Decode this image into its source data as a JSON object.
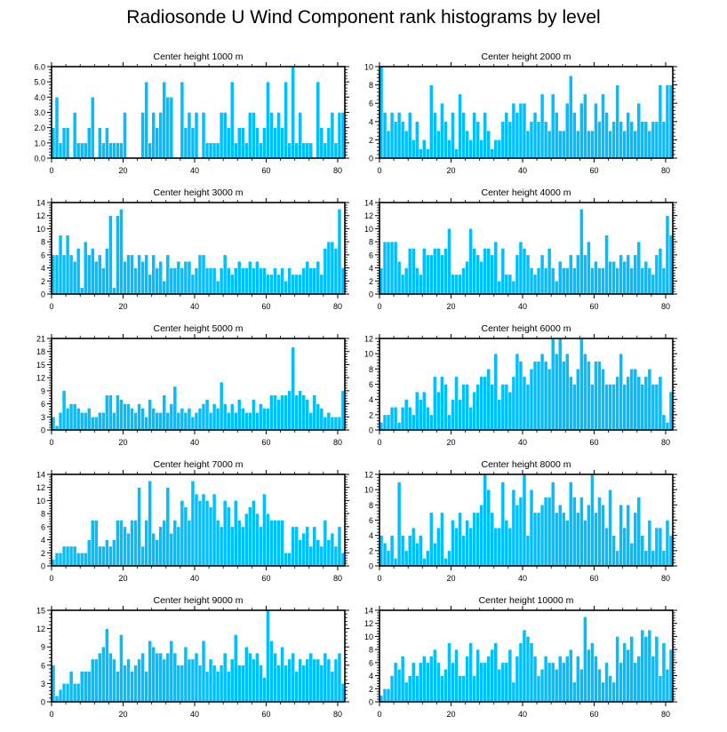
{
  "title": "Radiosonde U Wind Component rank histograms by level",
  "colors": {
    "bar": "#00BFFF",
    "bar_edge": "#ffffff",
    "axis": "#000000"
  },
  "chart_data": [
    {
      "type": "bar",
      "title": "Center height 1000 m",
      "xlim": [
        0,
        82
      ],
      "ylim": [
        0,
        6
      ],
      "xticks": [
        0,
        20,
        40,
        60,
        80
      ],
      "yticks": [
        "0.0",
        "1.0",
        "2.0",
        "3.0",
        "4.0",
        "5.0",
        "6.0"
      ],
      "ytick_values": [
        0,
        1,
        2,
        3,
        4,
        5,
        6
      ],
      "values": [
        2,
        4,
        1,
        2,
        2,
        0,
        3,
        1,
        1,
        1,
        2,
        4,
        0,
        2,
        1,
        2,
        1,
        1,
        1,
        1,
        3,
        0,
        0,
        0,
        0,
        3,
        5,
        1,
        3,
        2,
        3,
        5,
        4,
        4,
        0,
        0,
        5,
        2,
        3,
        2,
        3,
        0,
        3,
        1,
        1,
        1,
        1,
        3,
        3,
        2,
        5,
        1,
        2,
        2,
        1,
        3,
        3,
        2,
        1,
        2,
        5,
        3,
        2,
        3,
        2,
        5,
        1,
        6,
        1,
        3,
        1,
        1,
        1,
        0,
        5,
        2,
        1,
        2,
        3,
        1,
        3,
        3
      ]
    },
    {
      "type": "bar",
      "title": "Center height 2000 m",
      "xlim": [
        0,
        82
      ],
      "ylim": [
        0,
        10
      ],
      "xticks": [
        0,
        20,
        40,
        60,
        80
      ],
      "yticks": [
        "0",
        "2",
        "4",
        "6",
        "8",
        "10"
      ],
      "ytick_values": [
        0,
        2,
        4,
        6,
        8,
        10
      ],
      "values": [
        10,
        5,
        3,
        5,
        4,
        5,
        4,
        3,
        5,
        2,
        4,
        1,
        2,
        1,
        8,
        5,
        3,
        6,
        4,
        2,
        5,
        1,
        7,
        5,
        3,
        2,
        5,
        4,
        2,
        5,
        3,
        1,
        2,
        2,
        4,
        5,
        4,
        6,
        5,
        6,
        6,
        3,
        4,
        5,
        4,
        7,
        4,
        3,
        7,
        5,
        3,
        3,
        6,
        9,
        5,
        3,
        6,
        7,
        3,
        3,
        6,
        4,
        7,
        5,
        3,
        4,
        8,
        4,
        3,
        5,
        4,
        3,
        6,
        4,
        4,
        3,
        4,
        4,
        8,
        4,
        8,
        8
      ]
    },
    {
      "type": "bar",
      "title": "Center height 3000 m",
      "xlim": [
        0,
        82
      ],
      "ylim": [
        0,
        14
      ],
      "xticks": [
        0,
        20,
        40,
        60,
        80
      ],
      "yticks": [
        "0",
        "2",
        "4",
        "6",
        "8",
        "10",
        "12",
        "14"
      ],
      "ytick_values": [
        0,
        2,
        4,
        6,
        8,
        10,
        12,
        14
      ],
      "values": [
        6,
        6,
        9,
        6,
        9,
        6,
        5,
        7,
        1,
        8,
        6,
        7,
        5,
        6,
        4,
        7,
        12,
        1,
        12,
        13,
        5,
        6,
        6,
        4,
        6,
        5,
        6,
        3,
        6,
        4,
        5,
        2,
        6,
        4,
        4,
        5,
        4,
        5,
        5,
        3,
        4,
        6,
        6,
        4,
        4,
        4,
        2,
        4,
        6,
        4,
        3,
        4,
        5,
        4,
        4,
        5,
        4,
        5,
        4,
        4,
        3,
        3,
        4,
        3,
        4,
        2,
        4,
        3,
        3,
        3,
        4,
        5,
        4,
        4,
        5,
        3,
        7,
        8,
        8,
        7,
        13,
        4
      ]
    },
    {
      "type": "bar",
      "title": "Center height 4000 m",
      "xlim": [
        0,
        82
      ],
      "ylim": [
        0,
        14
      ],
      "xticks": [
        0,
        20,
        40,
        60,
        80
      ],
      "yticks": [
        "0",
        "2",
        "4",
        "6",
        "8",
        "10",
        "12",
        "14"
      ],
      "ytick_values": [
        0,
        2,
        4,
        6,
        8,
        10,
        12,
        14
      ],
      "values": [
        4,
        8,
        8,
        8,
        8,
        5,
        3,
        4,
        7,
        7,
        4,
        3,
        7,
        6,
        6,
        7,
        7,
        6,
        7,
        10,
        3,
        3,
        3,
        4,
        5,
        10,
        7,
        6,
        5,
        7,
        7,
        6,
        8,
        2,
        7,
        3,
        3,
        2,
        6,
        8,
        7,
        6,
        4,
        3,
        4,
        6,
        4,
        7,
        4,
        2,
        5,
        4,
        4,
        6,
        4,
        6,
        13,
        6,
        8,
        4,
        5,
        4,
        4,
        9,
        5,
        5,
        4,
        6,
        5,
        6,
        4,
        6,
        8,
        4,
        5,
        4,
        3,
        6,
        7,
        4,
        12,
        9
      ]
    },
    {
      "type": "bar",
      "title": "Center height 5000 m",
      "xlim": [
        0,
        82
      ],
      "ylim": [
        0,
        21
      ],
      "xticks": [
        0,
        20,
        40,
        60,
        80
      ],
      "yticks": [
        "0",
        "3",
        "6",
        "9",
        "12",
        "15",
        "18",
        "21"
      ],
      "ytick_values": [
        0,
        3,
        6,
        9,
        12,
        15,
        18,
        21
      ],
      "values": [
        3,
        1,
        4,
        9,
        5,
        6,
        6,
        5,
        4,
        4,
        5,
        3,
        3,
        4,
        4,
        8,
        8,
        4,
        8,
        7,
        6,
        6,
        5,
        4,
        6,
        5,
        3,
        7,
        5,
        4,
        4,
        8,
        4,
        6,
        10,
        4,
        5,
        4,
        5,
        3,
        4,
        5,
        6,
        7,
        4,
        6,
        5,
        11,
        6,
        4,
        6,
        4,
        7,
        5,
        4,
        4,
        7,
        4,
        6,
        5,
        5,
        8,
        8,
        7,
        8,
        8,
        9,
        19,
        8,
        9,
        8,
        7,
        4,
        8,
        6,
        5,
        3,
        4,
        3,
        3,
        3,
        9
      ]
    },
    {
      "type": "bar",
      "title": "Center height 6000 m",
      "xlim": [
        0,
        82
      ],
      "ylim": [
        0,
        12
      ],
      "xticks": [
        0,
        20,
        40,
        60,
        80
      ],
      "yticks": [
        "0",
        "2",
        "4",
        "6",
        "8",
        "10",
        "12"
      ],
      "ytick_values": [
        0,
        2,
        4,
        6,
        8,
        10,
        12
      ],
      "values": [
        1,
        2,
        2,
        3,
        3,
        1,
        3,
        4,
        3,
        2,
        5,
        4,
        5,
        3,
        2,
        7,
        5,
        7,
        6,
        2,
        4,
        7,
        4,
        6,
        6,
        3,
        5,
        6,
        7,
        7,
        8,
        6,
        10,
        4,
        6,
        6,
        5,
        7,
        10,
        9,
        7,
        6,
        8,
        9,
        9,
        10,
        9,
        8,
        12,
        10,
        12,
        9,
        10,
        7,
        6,
        8,
        12,
        10,
        9,
        6,
        9,
        9,
        8,
        6,
        6,
        6,
        7,
        10,
        6,
        7,
        8,
        8,
        7,
        6,
        7,
        8,
        6,
        6,
        7,
        2,
        1,
        5
      ]
    },
    {
      "type": "bar",
      "title": "Center height 7000 m",
      "xlim": [
        0,
        82
      ],
      "ylim": [
        0,
        14
      ],
      "xticks": [
        0,
        20,
        40,
        60,
        80
      ],
      "yticks": [
        "0",
        "2",
        "4",
        "6",
        "8",
        "10",
        "12",
        "14"
      ],
      "ytick_values": [
        0,
        2,
        4,
        6,
        8,
        10,
        12,
        14
      ],
      "values": [
        1,
        2,
        2,
        3,
        3,
        3,
        3,
        2,
        2,
        2,
        4,
        7,
        7,
        3,
        3,
        4,
        3,
        4,
        7,
        7,
        6,
        5,
        7,
        7,
        12,
        3,
        7,
        13,
        5,
        4,
        6,
        7,
        12,
        5,
        7,
        6,
        10,
        9,
        7,
        13,
        11,
        10,
        11,
        10,
        9,
        11,
        7,
        6,
        10,
        9,
        6,
        10,
        7,
        6,
        8,
        9,
        10,
        8,
        6,
        11,
        8,
        7,
        7,
        7,
        7,
        2,
        2,
        6,
        6,
        4,
        5,
        6,
        3,
        6,
        4,
        3,
        7,
        4,
        5,
        3,
        6,
        2
      ]
    },
    {
      "type": "bar",
      "title": "Center height 8000 m",
      "xlim": [
        0,
        82
      ],
      "ylim": [
        0,
        12
      ],
      "xticks": [
        0,
        20,
        40,
        60,
        80
      ],
      "yticks": [
        "0",
        "2",
        "4",
        "6",
        "8",
        "10",
        "12"
      ],
      "ytick_values": [
        0,
        2,
        4,
        6,
        8,
        10,
        12
      ],
      "values": [
        4,
        3,
        2,
        4,
        1,
        11,
        4,
        2,
        4,
        5,
        3,
        4,
        1,
        2,
        7,
        3,
        5,
        7,
        1,
        2,
        6,
        5,
        7,
        4,
        6,
        5,
        7,
        7,
        8,
        12,
        10,
        7,
        5,
        5,
        11,
        6,
        5,
        10,
        8,
        9,
        12,
        4,
        10,
        7,
        7,
        8,
        9,
        9,
        11,
        7,
        8,
        7,
        6,
        11,
        9,
        7,
        9,
        6,
        8,
        12,
        7,
        9,
        8,
        5,
        10,
        4,
        2,
        8,
        5,
        8,
        3,
        7,
        9,
        4,
        2,
        6,
        2,
        5,
        5,
        2,
        6,
        4
      ]
    },
    {
      "type": "bar",
      "title": "Center height 9000 m",
      "xlim": [
        0,
        82
      ],
      "ylim": [
        0,
        15
      ],
      "xticks": [
        0,
        20,
        40,
        60,
        80
      ],
      "yticks": [
        "0",
        "3",
        "6",
        "9",
        "12",
        "15"
      ],
      "ytick_values": [
        0,
        3,
        6,
        9,
        12,
        15
      ],
      "values": [
        6,
        1,
        2,
        3,
        3,
        5,
        3,
        3,
        5,
        5,
        5,
        7,
        7,
        8,
        9,
        12,
        8,
        7,
        5,
        11,
        6,
        7,
        5,
        6,
        7,
        8,
        5,
        10,
        9,
        8,
        8,
        7,
        8,
        10,
        8,
        6,
        6,
        9,
        7,
        7,
        8,
        6,
        10,
        5,
        7,
        6,
        5,
        6,
        8,
        5,
        7,
        11,
        6,
        6,
        9,
        8,
        7,
        8,
        6,
        4,
        15,
        10,
        8,
        6,
        9,
        6,
        7,
        8,
        5,
        7,
        6,
        7,
        8,
        7,
        7,
        6,
        8,
        7,
        5,
        7,
        8,
        3
      ]
    },
    {
      "type": "bar",
      "title": "Center height 10000 m",
      "xlim": [
        0,
        82
      ],
      "ylim": [
        0,
        14
      ],
      "xticks": [
        0,
        20,
        40,
        60,
        80
      ],
      "yticks": [
        "0",
        "2",
        "4",
        "6",
        "8",
        "10",
        "12",
        "14"
      ],
      "ytick_values": [
        0,
        2,
        4,
        6,
        8,
        10,
        12,
        14
      ],
      "values": [
        1,
        2,
        2,
        4,
        6,
        5,
        7,
        3,
        4,
        6,
        4,
        6,
        7,
        6,
        7,
        8,
        6,
        4,
        5,
        9,
        6,
        8,
        4,
        4,
        7,
        9,
        4,
        8,
        6,
        6,
        7,
        8,
        9,
        5,
        6,
        6,
        8,
        3,
        7,
        9,
        11,
        10,
        9,
        7,
        4,
        5,
        7,
        6,
        6,
        5,
        7,
        6,
        7,
        8,
        3,
        7,
        5,
        13,
        8,
        9,
        7,
        5,
        3,
        6,
        4,
        3,
        10,
        6,
        9,
        8,
        10,
        6,
        7,
        11,
        10,
        11,
        7,
        10,
        4,
        9,
        5,
        8
      ]
    }
  ]
}
